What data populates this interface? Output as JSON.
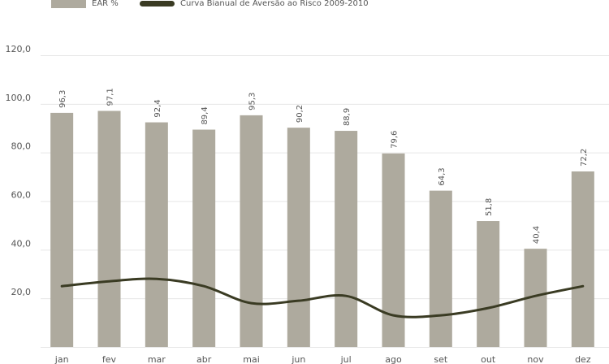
{
  "legend": {
    "bar_label": "EAR %",
    "line_label": "Curva Bianual de Aversão ao Risco 2009-2010"
  },
  "colors": {
    "bar": "#aeaa9e",
    "line": "#3a3b23",
    "grid": "#e6e6e6",
    "text": "#555555"
  },
  "chart_data": {
    "type": "bar",
    "categories": [
      "jan",
      "fev",
      "mar",
      "abr",
      "mai",
      "jun",
      "jul",
      "ago",
      "set",
      "out",
      "nov",
      "dez"
    ],
    "ylim": [
      0,
      120
    ],
    "yticks": [
      "20,0",
      "40,0",
      "60,0",
      "80,0",
      "100,0",
      "120,0"
    ],
    "grid": true,
    "legend_position": "top-left",
    "series": [
      {
        "name": "EAR %",
        "type": "bar",
        "values": [
          96.3,
          97.1,
          92.4,
          89.4,
          95.3,
          90.2,
          88.9,
          79.6,
          64.3,
          51.8,
          40.4,
          72.2
        ],
        "labels": [
          "96,3",
          "97,1",
          "92,4",
          "89,4",
          "95,3",
          "90,2",
          "88,9",
          "79,6",
          "64,3",
          "51,8",
          "40,4",
          "72,2"
        ]
      },
      {
        "name": "Curva Bianual de Aversão ao Risco 2009-2010",
        "type": "line",
        "values": [
          25,
          27,
          28,
          25,
          18,
          19,
          21,
          13,
          13,
          16,
          21,
          25
        ]
      }
    ]
  }
}
